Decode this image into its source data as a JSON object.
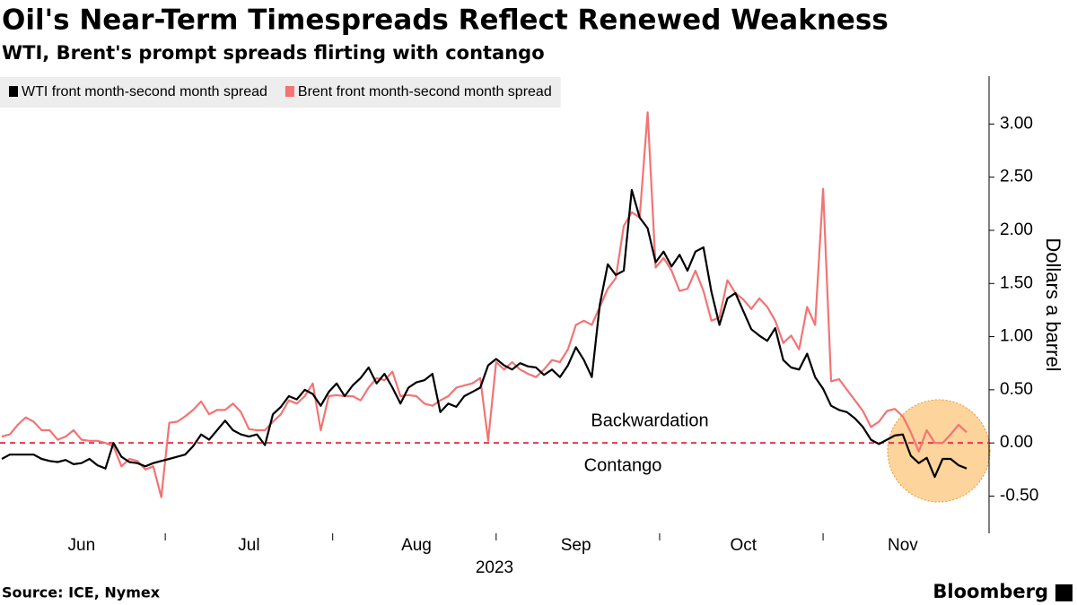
{
  "chart_data": {
    "type": "line",
    "title": "Oil's Near-Term Timespreads Reflect Renewed Weakness",
    "subtitle": "WTI, Brent's prompt spreads flirting with contango",
    "ylabel": "Dollars a barrel",
    "xlabel": "2023",
    "source": "Source: ICE, Nymex",
    "brand": "Bloomberg",
    "legend": "top-left",
    "categories": [
      null,
      null,
      null,
      null,
      null,
      null,
      null,
      null,
      null,
      null,
      "Jun",
      null,
      null,
      null,
      null,
      null,
      null,
      null,
      null,
      null,
      null,
      null,
      null,
      null,
      null,
      null,
      null,
      null,
      null,
      null,
      null,
      "Jul",
      null,
      null,
      null,
      null,
      null,
      null,
      null,
      null,
      null,
      null,
      null,
      null,
      null,
      null,
      null,
      null,
      null,
      null,
      null,
      null,
      "Aug",
      null,
      null,
      null,
      null,
      null,
      null,
      null,
      null,
      null,
      null,
      null,
      null,
      null,
      null,
      null,
      null,
      null,
      null,
      null,
      "Sep",
      null,
      null,
      null,
      null,
      null,
      null,
      null,
      null,
      null,
      null,
      null,
      null,
      null,
      null,
      null,
      null,
      null,
      null,
      null,
      null,
      "Oct",
      null,
      null,
      null,
      null,
      null,
      null,
      null,
      null,
      null,
      null,
      null,
      null,
      null,
      null,
      null,
      null,
      null,
      null,
      null,
      "Nov",
      null,
      null,
      null,
      null,
      null,
      null,
      null,
      null
    ],
    "series": [
      {
        "name": "WTI front month-second month spread",
        "color": "#000000",
        "values": [
          -0.15,
          -0.11,
          -0.11,
          -0.11,
          -0.11,
          -0.15,
          -0.17,
          -0.18,
          -0.16,
          -0.2,
          -0.19,
          -0.15,
          -0.21,
          -0.24,
          0.0,
          -0.13,
          -0.18,
          -0.19,
          -0.22,
          -0.19,
          -0.17,
          -0.15,
          -0.13,
          -0.11,
          -0.03,
          0.08,
          0.03,
          0.12,
          0.21,
          0.12,
          0.08,
          0.06,
          0.08,
          -0.02,
          0.27,
          0.34,
          0.44,
          0.41,
          0.5,
          0.46,
          0.35,
          0.48,
          0.56,
          0.44,
          0.54,
          0.61,
          0.71,
          0.56,
          0.65,
          0.52,
          0.37,
          0.52,
          0.57,
          0.59,
          0.65,
          0.29,
          0.37,
          0.34,
          0.44,
          0.48,
          0.52,
          0.73,
          0.79,
          0.73,
          0.69,
          0.75,
          0.72,
          0.71,
          0.64,
          0.69,
          0.62,
          0.73,
          0.9,
          0.78,
          0.62,
          1.3,
          1.68,
          1.58,
          1.62,
          2.38,
          2.12,
          2.02,
          1.7,
          1.8,
          1.66,
          1.77,
          1.62,
          1.8,
          1.84,
          1.42,
          1.11,
          1.36,
          1.41,
          1.24,
          1.07,
          1.01,
          0.96,
          1.08,
          0.78,
          0.71,
          0.69,
          0.84,
          0.62,
          0.51,
          0.35,
          0.31,
          0.29,
          0.23,
          0.15,
          0.03,
          -0.01,
          0.03,
          0.07,
          0.08,
          -0.12,
          -0.19,
          -0.14,
          -0.32,
          -0.15,
          -0.15,
          -0.21,
          -0.24
        ]
      },
      {
        "name": "Brent front month-second month spread",
        "color": "#f27474",
        "values": [
          0.06,
          0.08,
          0.17,
          0.24,
          0.2,
          0.12,
          0.12,
          0.03,
          0.06,
          0.12,
          0.03,
          0.02,
          0.02,
          0.0,
          -0.03,
          -0.22,
          -0.15,
          -0.17,
          -0.25,
          -0.22,
          -0.51,
          0.19,
          0.2,
          0.25,
          0.31,
          0.39,
          0.27,
          0.31,
          0.31,
          0.37,
          0.29,
          0.13,
          0.12,
          0.12,
          0.2,
          0.27,
          0.4,
          0.37,
          0.44,
          0.56,
          0.12,
          0.44,
          0.45,
          0.44,
          0.44,
          0.4,
          0.52,
          0.61,
          0.59,
          0.67,
          0.44,
          0.45,
          0.44,
          0.37,
          0.35,
          0.4,
          0.44,
          0.52,
          0.54,
          0.56,
          0.61,
          0.02,
          0.76,
          0.69,
          0.76,
          0.69,
          0.65,
          0.62,
          0.69,
          0.78,
          0.76,
          0.88,
          1.11,
          1.15,
          1.11,
          1.28,
          1.45,
          1.55,
          2.04,
          2.17,
          2.12,
          3.11,
          1.65,
          1.74,
          1.62,
          1.43,
          1.45,
          1.62,
          1.43,
          1.15,
          1.18,
          1.53,
          1.41,
          1.35,
          1.26,
          1.36,
          1.28,
          1.15,
          0.94,
          1.01,
          0.88,
          1.28,
          1.11,
          2.39,
          0.58,
          0.6,
          0.5,
          0.4,
          0.3,
          0.15,
          0.2,
          0.3,
          0.32,
          0.25,
          0.1,
          -0.08,
          0.12,
          0.0,
          0.0,
          0.08,
          0.17,
          0.1
        ]
      }
    ],
    "ylim": [
      -0.85,
      3.45
    ],
    "yticks": [
      {
        "value": -0.5,
        "label": "-0.50"
      },
      {
        "value": 0,
        "label": "0.00"
      },
      {
        "value": 0.5,
        "label": "0.50"
      },
      {
        "value": 1,
        "label": "1.00"
      },
      {
        "value": 1.5,
        "label": "1.50"
      },
      {
        "value": 2,
        "label": "2.00"
      },
      {
        "value": 2.5,
        "label": "2.50"
      },
      {
        "value": 3,
        "label": "3.00"
      }
    ],
    "reference_line": {
      "value": 0,
      "color": "#e8344e"
    },
    "annotations": [
      {
        "text": "Backwardation",
        "color": "#33dd33"
      },
      {
        "text": "Contango",
        "color": "#e8344e"
      }
    ]
  }
}
